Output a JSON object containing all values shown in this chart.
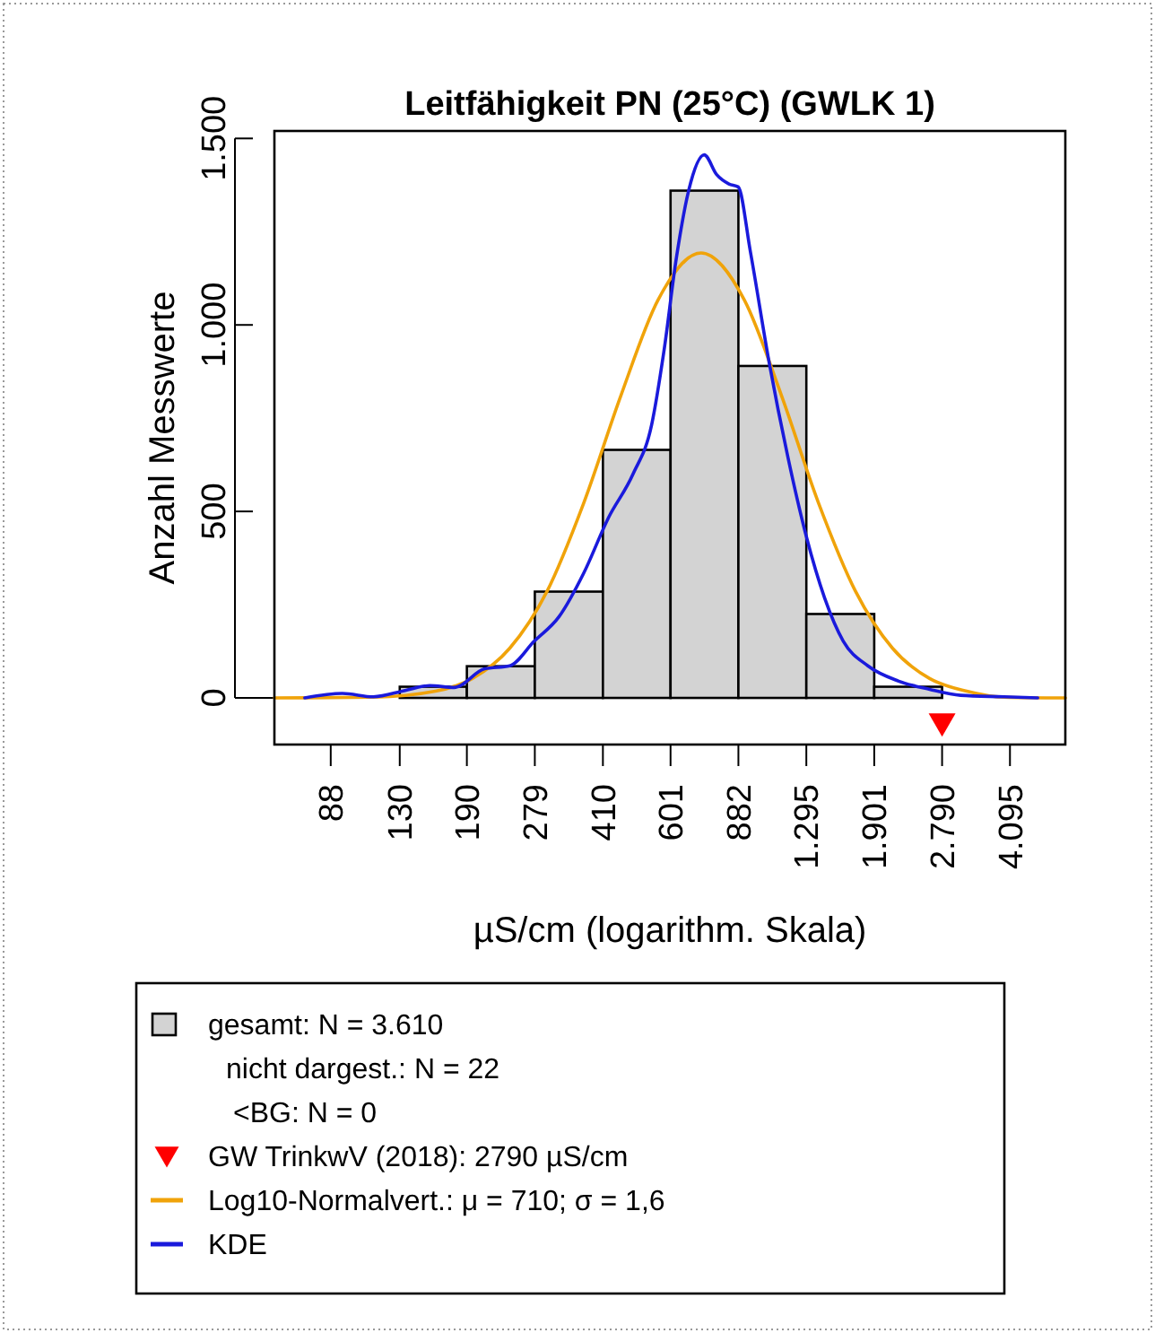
{
  "chart_data": {
    "type": "histogram",
    "title": "Leitfähigkeit PN (25°C) (GWLK 1)",
    "xlabel": "µS/cm (logarithm. Skala)",
    "ylabel": "Anzahl Messwerte",
    "log": "x",
    "grid": false,
    "legend": "bottom",
    "xlim": [
      64,
      5600
    ],
    "ylim": [
      -125,
      1520
    ],
    "xticks": [
      88,
      130,
      190,
      279,
      410,
      601,
      882,
      {
        "value": 1295,
        "label": "1.295"
      },
      {
        "value": 1901,
        "label": "1.901"
      },
      {
        "value": 2790,
        "label": "2.790"
      },
      {
        "value": 4095,
        "label": "4.095"
      }
    ],
    "yticks": [
      0,
      500,
      {
        "value": 1000,
        "label": "1.000"
      },
      {
        "value": 1500,
        "label": "1.500"
      }
    ],
    "annotations": [
      "nicht dargest.: N = 22",
      "<BG: N = 0"
    ],
    "series": [
      {
        "name": "gesamt: N = 3.610",
        "color": "#d3d3d3",
        "bins": [
          130,
          190,
          279,
          410,
          601,
          882,
          1295,
          1901,
          2790
        ],
        "values": [
          30,
          85,
          285,
          665,
          1360,
          890,
          225,
          30
        ]
      },
      {
        "type": "scatter",
        "name": "GW TrinkwV (2018): 2790 µS/cm",
        "color": "#ff0000",
        "marker": "triangle",
        "x": [
          2790
        ],
        "values": [
          -70
        ]
      },
      {
        "type": "line",
        "name": "Log10-Normalvert.: μ = 710; σ = 1,6",
        "color": "#f0a30a",
        "x": [
          64,
          112,
          159,
          196,
          242,
          299,
          368,
          454,
          560,
          714,
          912,
          1125,
          1387,
          1710,
          2109,
          2600,
          3207,
          3954,
          5600
        ],
        "values": [
          0,
          2,
          18,
          52,
          133,
          286,
          523,
          811,
          1067,
          1193,
          1067,
          811,
          523,
          286,
          133,
          52,
          18,
          2,
          0
        ]
      },
      {
        "type": "line",
        "name": "KDE",
        "color": "#1a1adc",
        "x": [
          76,
          94,
          112,
          134,
          154,
          177,
          210,
          242,
          278,
          320,
          368,
          423,
          486,
          540,
          579,
          621,
          666,
          727,
          780,
          836,
          881,
          944,
          1050,
          1165,
          1294,
          1436,
          1596,
          1834,
          2183,
          2600,
          3097,
          3954,
          4790
        ],
        "values": [
          0,
          12,
          3,
          20,
          33,
          28,
          78,
          86,
          152,
          218,
          335,
          483,
          600,
          732,
          930,
          1179,
          1361,
          1456,
          1403,
          1378,
          1370,
          1196,
          898,
          649,
          434,
          268,
          152,
          86,
          45,
          23,
          7,
          3,
          0
        ]
      }
    ]
  }
}
